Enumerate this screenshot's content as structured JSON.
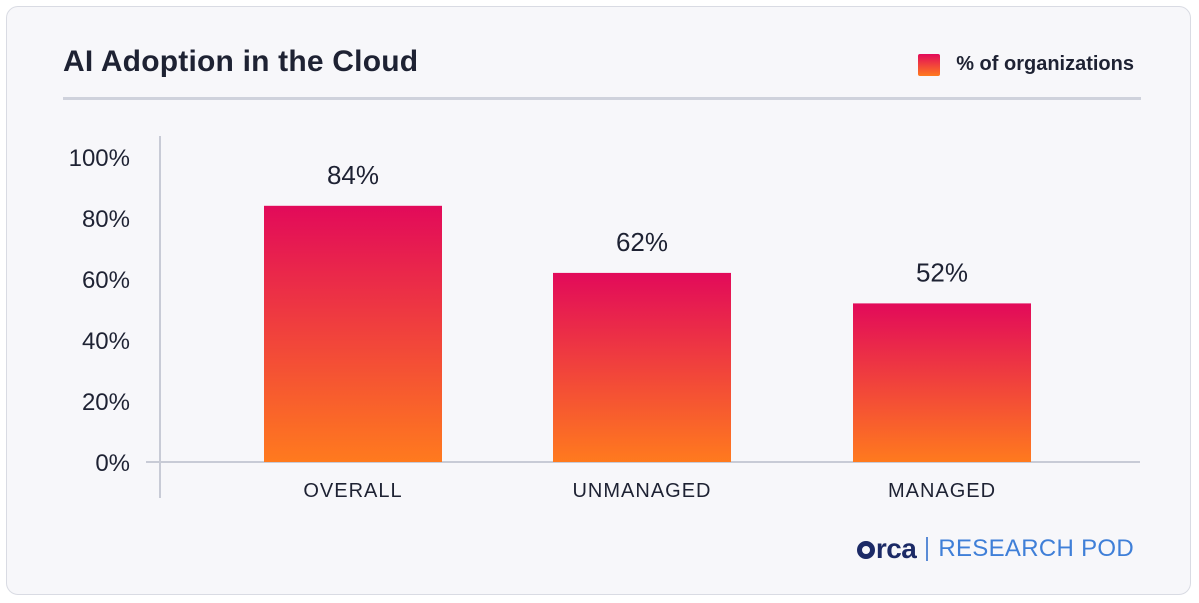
{
  "header": {
    "title": "AI Adoption in the Cloud",
    "legend_label": "% of organizations"
  },
  "brand": {
    "logo_text": "rca",
    "label": "RESEARCH POD"
  },
  "colors": {
    "bar_top": "#e20a5a",
    "bar_bottom": "#ff7a1e",
    "text": "#1e2233",
    "axis": "#c8cbd6",
    "brand_dark": "#1c2a66",
    "brand_blue": "#3f7fd8"
  },
  "chart_data": {
    "type": "bar",
    "title": "AI Adoption in the Cloud",
    "categories": [
      "OVERALL",
      "UNMANAGED",
      "MANAGED"
    ],
    "series": [
      {
        "name": "% of organizations",
        "values": [
          84,
          62,
          52
        ]
      }
    ],
    "data_labels": [
      "84%",
      "62%",
      "52%"
    ],
    "yticks": [
      "0%",
      "20%",
      "40%",
      "60%",
      "80%",
      "100%"
    ],
    "ylim": [
      0,
      100
    ],
    "legend_position": "top-right",
    "grid": false
  }
}
